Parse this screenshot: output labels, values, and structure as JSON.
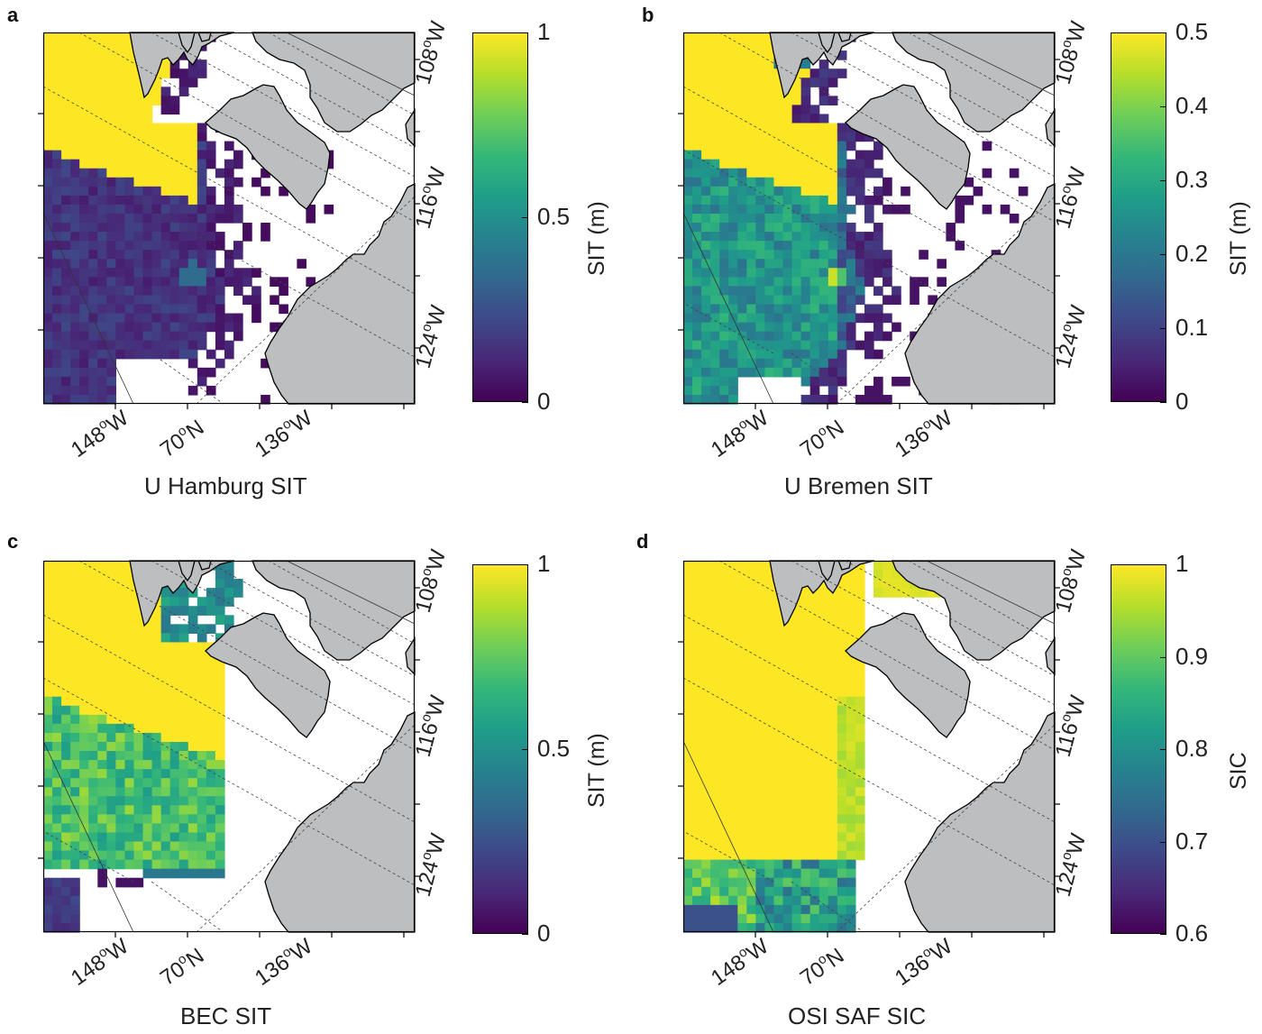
{
  "figure": {
    "panels": [
      {
        "letter": "a",
        "caption": "U Hamburg SIT",
        "colorbar": {
          "label": "SIT (m)",
          "ticks": [
            "1",
            "0.5",
            "0"
          ],
          "min": 0,
          "max": 1,
          "colormap": "viridis"
        },
        "field": "sit_hamburg"
      },
      {
        "letter": "b",
        "caption": "U Bremen SIT",
        "colorbar": {
          "label": "SIT (m)",
          "ticks": [
            "0.5",
            "0.4",
            "0.3",
            "0.2",
            "0.1",
            "0"
          ],
          "min": 0,
          "max": 0.5,
          "colormap": "viridis"
        },
        "field": "sit_bremen"
      },
      {
        "letter": "c",
        "caption": "BEC SIT",
        "colorbar": {
          "label": "SIT (m)",
          "ticks": [
            "1",
            "0.5",
            "0"
          ],
          "min": 0,
          "max": 1,
          "colormap": "viridis"
        },
        "field": "sit_bec"
      },
      {
        "letter": "d",
        "caption": "OSI SAF SIC",
        "colorbar": {
          "label": "SIC",
          "ticks": [
            "1",
            "0.9",
            "0.8",
            "0.7",
            "0.6"
          ],
          "min": 0.6,
          "max": 1,
          "colormap": "viridis"
        },
        "field": "sic_osisaf"
      }
    ],
    "graticule_labels": {
      "bottom": [
        {
          "deg": "148",
          "hem": "W"
        },
        {
          "deg": "70",
          "hem": "N"
        },
        {
          "deg": "136",
          "hem": "W"
        }
      ],
      "right": [
        {
          "deg": "108",
          "hem": "W"
        },
        {
          "deg": "116",
          "hem": "W"
        },
        {
          "deg": "124",
          "hem": "W"
        }
      ]
    },
    "colors": {
      "land": "#bdbec0",
      "ocean": "#ffffff",
      "coast": "#000000",
      "viridis": [
        "#440154",
        "#482878",
        "#3e4989",
        "#31688e",
        "#26828e",
        "#1f9e89",
        "#35b779",
        "#6ece58",
        "#b5de2b",
        "#fde725"
      ]
    }
  }
}
